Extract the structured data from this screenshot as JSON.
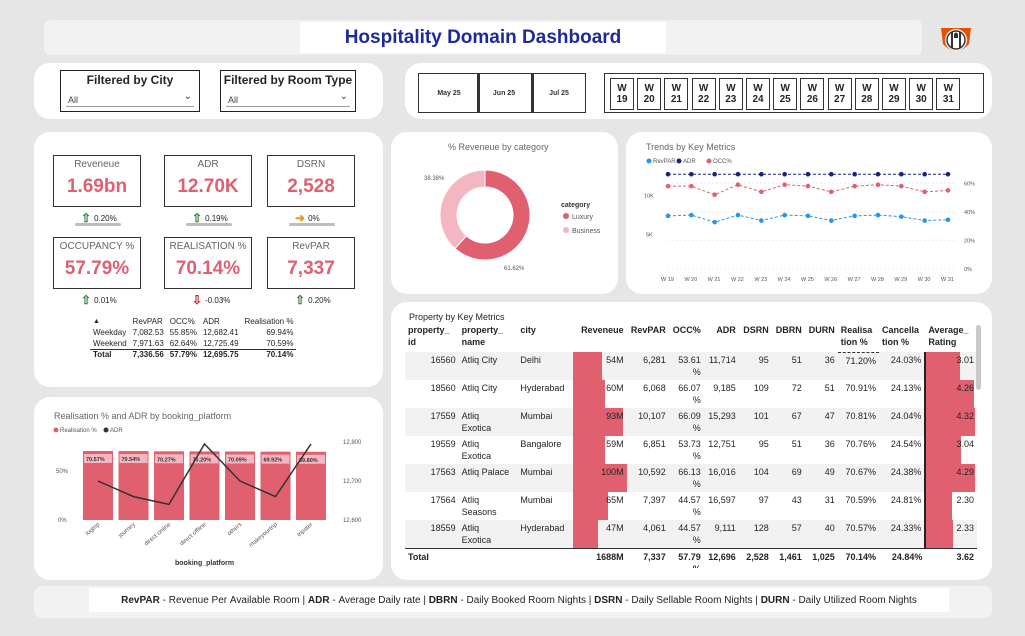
{
  "header": {
    "title": "Hospitality Domain Dashboard",
    "logo_icon": "hotel-chef-logo"
  },
  "filters": {
    "city": {
      "label": "Filtered by City",
      "value": "All"
    },
    "room_type": {
      "label": "Filtered by Room Type",
      "value": "All"
    }
  },
  "months": [
    "May 25",
    "Jun 25",
    "Jul 25"
  ],
  "weeks": [
    {
      "w": "W",
      "n": "19"
    },
    {
      "w": "W",
      "n": "20"
    },
    {
      "w": "W",
      "n": "21"
    },
    {
      "w": "W",
      "n": "22"
    },
    {
      "w": "W",
      "n": "23"
    },
    {
      "w": "W",
      "n": "24"
    },
    {
      "w": "W",
      "n": "25"
    },
    {
      "w": "W",
      "n": "26"
    },
    {
      "w": "W",
      "n": "27"
    },
    {
      "w": "W",
      "n": "28"
    },
    {
      "w": "W",
      "n": "29"
    },
    {
      "w": "W",
      "n": "30"
    },
    {
      "w": "W",
      "n": "31"
    }
  ],
  "kpis": [
    {
      "label": "Reveneue",
      "value": "1.69bn",
      "change": "0.20%",
      "dir": "up"
    },
    {
      "label": "ADR",
      "value": "12.70K",
      "change": "0.19%",
      "dir": "up"
    },
    {
      "label": "DSRN",
      "value": "2,528",
      "change": "0%",
      "dir": "flat"
    },
    {
      "label": "OCCUPANCY %",
      "value": "57.79%",
      "change": "0.01%",
      "dir": "up"
    },
    {
      "label": "REALISATION %",
      "value": "70.14%",
      "change": "-0.03%",
      "dir": "down"
    },
    {
      "label": "RevPAR",
      "value": "7,337",
      "change": "0.20%",
      "dir": "up"
    }
  ],
  "day_table": {
    "headers": [
      "",
      "RevPAR",
      "OCC%",
      "ADR",
      "Realisation %"
    ],
    "rows": [
      [
        "Weekday",
        "7,082.53",
        "55.85%",
        "12,682.41",
        "69.94%"
      ],
      [
        "Weekend",
        "7,971.63",
        "62.64%",
        "12,725.49",
        "70.59%"
      ],
      [
        "Total",
        "7,336.56",
        "57.79%",
        "12,695.75",
        "70.14%"
      ]
    ]
  },
  "donut": {
    "title": "% Reveneue by category",
    "legend_title": "category",
    "labels": {
      "luxury": "61.62%",
      "business": "38.38%"
    }
  },
  "trends": {
    "title": "Trends by Key Metrics",
    "legend": [
      "RevPAR",
      "ADR",
      "OCC%"
    ]
  },
  "platform": {
    "title": "Realisation % and ADR by booking_platform",
    "legend": [
      "Realisation %",
      "ADR"
    ],
    "xlabel": "booking_platform"
  },
  "property_table": {
    "title": "Property by Key Metrics",
    "headers": [
      "property_\nid",
      "property_\nname",
      "city",
      "Reveneue",
      "RevPAR",
      "OCC%",
      "ADR",
      "DSRN",
      "DBRN",
      "DURN",
      "Realisa\ntion %",
      "Cancella\ntion %",
      "Average_\nRating"
    ],
    "rows": [
      {
        "id": "16560",
        "name": "Atliq City",
        "city": "Delhi",
        "rev": "54M",
        "revpar": "6,281",
        "occ": "53.61\n%",
        "adr": "11,714",
        "dsrn": "95",
        "dbrn": "51",
        "durn": "36",
        "real": "71.20%",
        "canc": "24.03%",
        "rating": "3.01"
      },
      {
        "id": "18560",
        "name": "Atliq City",
        "city": "Hyderabad",
        "rev": "60M",
        "revpar": "6,068",
        "occ": "66.07\n%",
        "adr": "9,185",
        "dsrn": "109",
        "dbrn": "72",
        "durn": "51",
        "real": "70.91%",
        "canc": "24.13%",
        "rating": "4.26"
      },
      {
        "id": "17559",
        "name": "Atliq\nExotica",
        "city": "Mumbai",
        "rev": "93M",
        "revpar": "10,107",
        "occ": "66.09\n%",
        "adr": "15,293",
        "dsrn": "101",
        "dbrn": "67",
        "durn": "47",
        "real": "70.81%",
        "canc": "24.04%",
        "rating": "4.32"
      },
      {
        "id": "19559",
        "name": "Atliq\nExotica",
        "city": "Bangalore",
        "rev": "59M",
        "revpar": "6,851",
        "occ": "53.73\n%",
        "adr": "12,751",
        "dsrn": "95",
        "dbrn": "51",
        "durn": "36",
        "real": "70.76%",
        "canc": "24.54%",
        "rating": "3.04"
      },
      {
        "id": "17563",
        "name": "Atliq Palace",
        "city": "Mumbai",
        "rev": "100M",
        "revpar": "10,592",
        "occ": "66.13\n%",
        "adr": "16,016",
        "dsrn": "104",
        "dbrn": "69",
        "durn": "49",
        "real": "70.67%",
        "canc": "24.38%",
        "rating": "4.29"
      },
      {
        "id": "17564",
        "name": "Atliq\nSeasons",
        "city": "Mumbai",
        "rev": "65M",
        "revpar": "7,397",
        "occ": "44.57\n%",
        "adr": "16,597",
        "dsrn": "97",
        "dbrn": "43",
        "durn": "31",
        "real": "70.59%",
        "canc": "24.81%",
        "rating": "2.30"
      },
      {
        "id": "18559",
        "name": "Atliq\nExotica",
        "city": "Hyderabad",
        "rev": "47M",
        "revpar": "4,061",
        "occ": "44.57\n%",
        "adr": "9,111",
        "dsrn": "128",
        "dbrn": "57",
        "durn": "40",
        "real": "70.57%",
        "canc": "24.33%",
        "rating": "2.33"
      }
    ],
    "total": {
      "label": "Total",
      "rev": "1688M",
      "revpar": "7,337",
      "occ": "57.79\n%",
      "adr": "12,696",
      "dsrn": "2,528",
      "dbrn": "1,461",
      "durn": "1,025",
      "real": "70.14%",
      "canc": "24.84%",
      "rating": "3.62"
    }
  },
  "footer": [
    {
      "k": "RevPAR",
      "v": " - Revenue Per Available Room | "
    },
    {
      "k": "ADR",
      "v": " - Average Daily rate | "
    },
    {
      "k": "DBRN",
      "v": " - Daily Booked Room Nights | "
    },
    {
      "k": "DSRN",
      "v": " - Daily Sellable Room Nights | "
    },
    {
      "k": "DURN",
      "v": " - Daily Utilized Room Nights"
    }
  ],
  "colors": {
    "accent": "#e06070",
    "light": "#f4b6c0",
    "title_blue": "#1c2b99",
    "navy": "#1a237e",
    "blue": "#2196f3",
    "up": "#2e7d32",
    "down": "#c62828",
    "flat": "#e09a2a"
  },
  "chart_data": [
    {
      "type": "pie",
      "title": "% Reveneue by category",
      "categories": [
        "Luxury",
        "Business"
      ],
      "values": [
        61.62,
        38.38
      ]
    },
    {
      "type": "line",
      "title": "Trends by Key Metrics",
      "x": [
        "W 19",
        "W 20",
        "W 21",
        "W 22",
        "W 23",
        "W 24",
        "W 25",
        "W 26",
        "W 27",
        "W 28",
        "W 29",
        "W 30",
        "W 31"
      ],
      "series": [
        {
          "name": "RevPAR",
          "axis": "left",
          "values": [
            7400,
            7500,
            6600,
            7500,
            6800,
            7500,
            7400,
            6800,
            7400,
            7500,
            7300,
            6800,
            6900
          ]
        },
        {
          "name": "ADR",
          "axis": "left",
          "values": [
            12700,
            12700,
            12700,
            12700,
            12700,
            12700,
            12700,
            12700,
            12700,
            12700,
            12700,
            12700,
            12700
          ]
        },
        {
          "name": "OCC%",
          "axis": "right",
          "values": [
            58,
            58,
            52,
            59,
            54,
            59,
            58,
            54,
            58,
            59,
            58,
            54,
            55
          ]
        }
      ],
      "left_ticks": [
        "5K",
        "10K"
      ],
      "right_ticks": [
        "0%",
        "20%",
        "40%",
        "60%"
      ]
    },
    {
      "type": "bar",
      "title": "Realisation % and ADR by booking_platform",
      "categories": [
        "logtrip",
        "journey",
        "direct online",
        "direct offline",
        "others",
        "makeyourtrip",
        "tripster"
      ],
      "series": [
        {
          "name": "Realisation %",
          "values": [
            70.57,
            70.54,
            70.27,
            70.2,
            70.09,
            69.92,
            69.8
          ],
          "labels": [
            "70.57%",
            "70.54%",
            "70.27%",
            "70.20%",
            "70.09%",
            "69.92%",
            "69.80%"
          ]
        },
        {
          "name": "ADR",
          "axis": "right",
          "values": [
            12700,
            12660,
            12640,
            12795,
            12700,
            12660,
            12795
          ]
        }
      ],
      "left_ticks": [
        "0%",
        "50%"
      ],
      "right_ticks": [
        "12,600",
        "12,700",
        "12,800"
      ],
      "xlabel": "booking_platform"
    }
  ]
}
